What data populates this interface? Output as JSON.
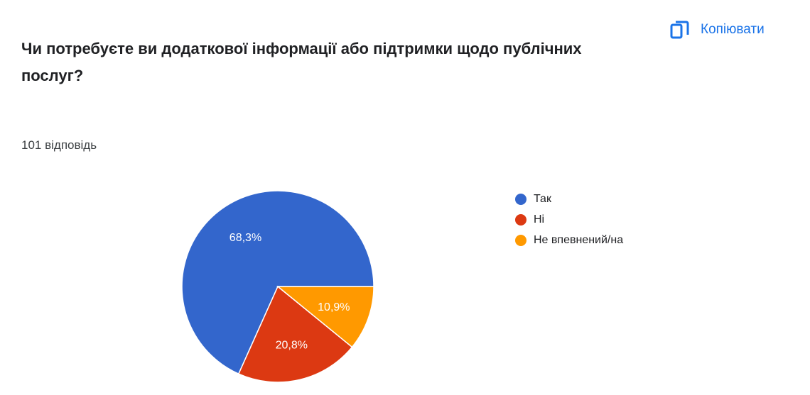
{
  "header": {
    "title": "Чи потребуєте ви додаткової інформації або підтримки щодо публічних послуг?",
    "copy_label": "Копіювати",
    "copy_icon": "copy-icon"
  },
  "summary": {
    "responses": "101 відповідь"
  },
  "chart_data": {
    "type": "pie",
    "title": "",
    "categories": [
      "Так",
      "Ні",
      "Не впевнений/на"
    ],
    "values": [
      68.3,
      20.8,
      10.9
    ],
    "labels": [
      "68,3%",
      "20,8%",
      "10,9%"
    ],
    "colors": [
      "#3366cc",
      "#dc3912",
      "#ff9900"
    ],
    "start": "right, counter-clockwise",
    "legend_position": "right"
  }
}
